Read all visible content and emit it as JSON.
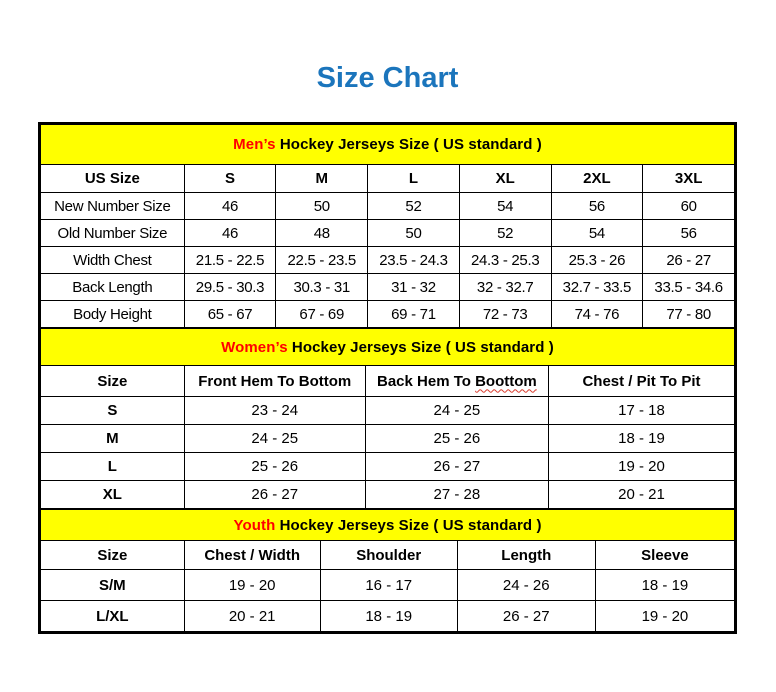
{
  "page": {
    "title": "Size Chart"
  },
  "colors": {
    "title_blue": "#1B75BC",
    "banner_background": "#FFFF00",
    "banner_highlight_red": "#FF0000",
    "border_black": "#000000",
    "spellcheck_underline_red": "#D93A2B"
  },
  "tables": [
    {
      "id": "mens",
      "banner": {
        "highlight": "Men’s",
        "rest": " Hockey Jerseys Size ( US standard )"
      },
      "columns": [
        "US Size",
        "S",
        "M",
        "L",
        "XL",
        "2XL",
        "3XL"
      ],
      "rows": [
        [
          "New Number Size",
          "46",
          "50",
          "52",
          "54",
          "56",
          "60"
        ],
        [
          "Old Number Size",
          "46",
          "48",
          "50",
          "52",
          "54",
          "56"
        ],
        [
          "Width Chest",
          "21.5 - 22.5",
          "22.5 - 23.5",
          "23.5 - 24.3",
          "24.3 - 25.3",
          "25.3 - 26",
          "26 - 27"
        ],
        [
          "Back Length",
          "29.5 - 30.3",
          "30.3 - 31",
          "31 - 32",
          "32 - 32.7",
          "32.7 - 33.5",
          "33.5 - 34.6"
        ],
        [
          "Body Height",
          "65 - 67",
          "67 - 69",
          "69 - 71",
          "72 - 73",
          "74 - 76",
          "77 - 80"
        ]
      ]
    },
    {
      "id": "womens",
      "banner": {
        "highlight": "Women’s",
        "rest": " Hockey Jerseys Size ( US standard )"
      },
      "columns": [
        "Size",
        "Front Hem To Bottom",
        "Back Hem To Boottom",
        "Chest / Pit To Pit"
      ],
      "spellcheck": {
        "column_index": 2,
        "word": "Boottom"
      },
      "rows": [
        [
          "S",
          "23 - 24",
          "24 - 25",
          "17 - 18"
        ],
        [
          "M",
          "24 - 25",
          "25 - 26",
          "18 - 19"
        ],
        [
          "L",
          "25 - 26",
          "26 - 27",
          "19 - 20"
        ],
        [
          "XL",
          "26 - 27",
          "27 - 28",
          "20 - 21"
        ]
      ]
    },
    {
      "id": "youth",
      "banner": {
        "highlight": "Youth",
        "rest": " Hockey Jerseys Size ( US standard )"
      },
      "columns": [
        "Size",
        "Chest / Width",
        "Shoulder",
        "Length",
        "Sleeve"
      ],
      "rows": [
        [
          "S/M",
          "19 - 20",
          "16 - 17",
          "24 - 26",
          "18 - 19"
        ],
        [
          "L/XL",
          "20 - 21",
          "18 - 19",
          "26 - 27",
          "19 - 20"
        ]
      ]
    }
  ]
}
